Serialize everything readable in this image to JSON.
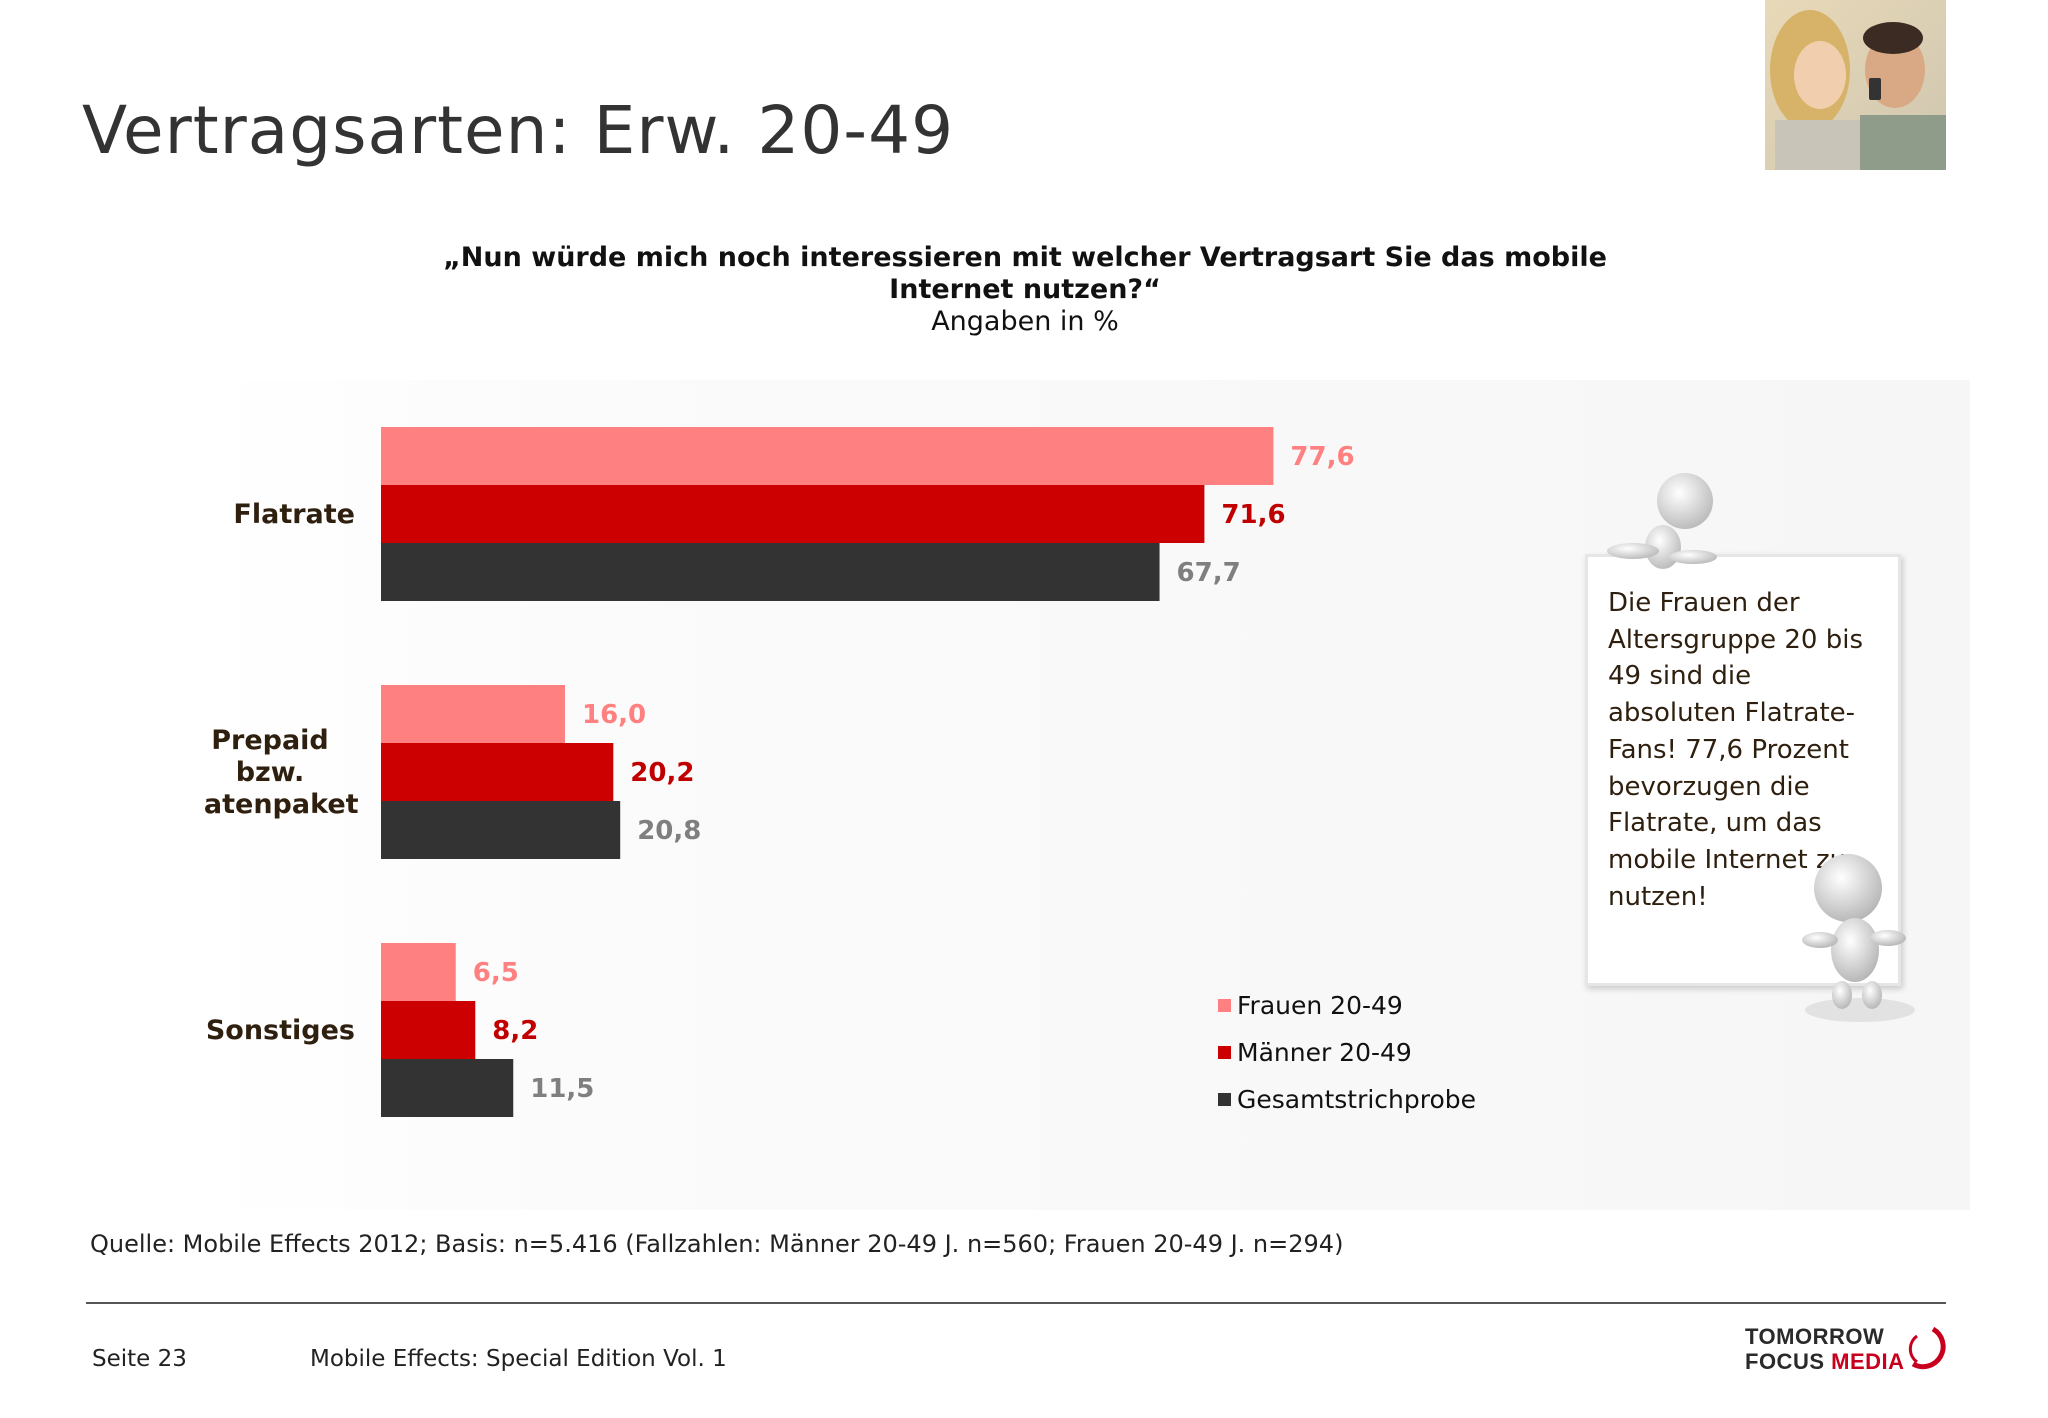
{
  "page": {
    "title": "Vertragsarten: Erw. 20-49",
    "question": "„Nun würde mich noch interessieren mit welcher Vertragsart Sie das mobile Internet nutzen?“",
    "unit_note": "Angaben in %"
  },
  "chart_data": {
    "type": "bar",
    "orientation": "horizontal",
    "categories": [
      "Flatrate",
      "Prepaid bzw. Datenpaket",
      "Sonstiges"
    ],
    "series": [
      {
        "name": "Frauen 20-49",
        "values": [
          "77,6",
          "16,0",
          "6,5"
        ],
        "color": "#ff8080",
        "label_color": "#ff8080"
      },
      {
        "name": "Männer 20-49",
        "values": [
          "71,6",
          "20,2",
          "8,2"
        ],
        "color": "#cc0000",
        "label_color": "#c00000"
      },
      {
        "name": "Gesamtstrichprobe",
        "values": [
          "67,7",
          "20,8",
          "11,5"
        ],
        "color": "#333333",
        "label_color": "#7f7f7f"
      }
    ],
    "xlim": [
      0,
      100
    ],
    "grid": false,
    "legend_position": "bottom-right"
  },
  "callout": {
    "text": "Die Frauen der Altersgruppe 20 bis 49 sind die absoluten Flatrate-Fans! 77,6 Prozent bevorzugen die Flatrate, um das  mobile Internet zu nutzen!"
  },
  "source": "Quelle: Mobile Effects 2012; Basis: n=5.416 (Fallzahlen: Männer 20-49 J. n=560; Frauen 20-49 J. n=294)",
  "footer": {
    "page": "Seite 23",
    "publication": "Mobile Effects: Special Edition Vol. 1"
  },
  "logo": {
    "line1": "TOMORROW",
    "line2a": "FOCUS",
    "line2b": "MEDIA",
    "accent_color": "#c8001e"
  }
}
